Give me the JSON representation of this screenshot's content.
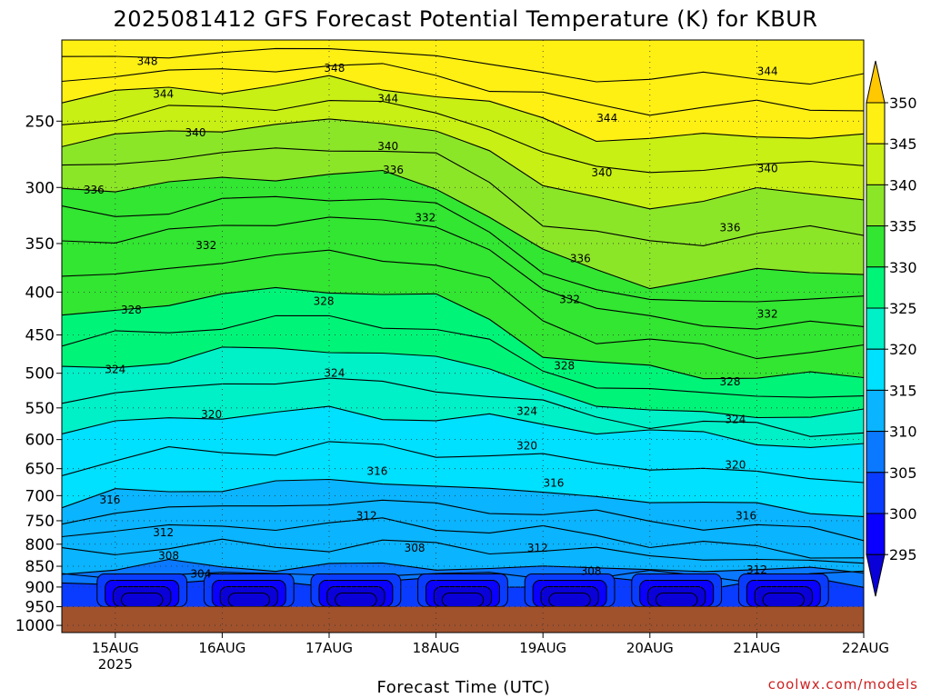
{
  "chart_data": {
    "type": "heatmap",
    "title": "2025081412 GFS Forecast Potential Temperature (K) for KBUR",
    "xlabel": "Forecast Time (UTC)",
    "ylabel": "",
    "x_ticks": [
      {
        "value": 0.5,
        "label": "15AUG",
        "sub": "2025"
      },
      {
        "value": 1.5,
        "label": "16AUG"
      },
      {
        "value": 2.5,
        "label": "17AUG"
      },
      {
        "value": 3.5,
        "label": "18AUG"
      },
      {
        "value": 4.5,
        "label": "19AUG"
      },
      {
        "value": 5.5,
        "label": "20AUG"
      },
      {
        "value": 6.5,
        "label": "21AUG"
      },
      {
        "value": 7.5,
        "label": "22AUG"
      }
    ],
    "xlim": [
      0,
      7.5
    ],
    "y_ticks": [
      250,
      300,
      350,
      400,
      450,
      500,
      550,
      600,
      650,
      700,
      750,
      800,
      850,
      900,
      950,
      1000
    ],
    "ylim_hPa": [
      200,
      1020
    ],
    "y_scale": "log-pressure",
    "surface_pressure_hPa": 950,
    "grid": true,
    "colorbar": {
      "levels": [
        295,
        300,
        305,
        310,
        315,
        320,
        325,
        330,
        335,
        340,
        345,
        350
      ],
      "colors": [
        "#0a00d8",
        "#0a00ff",
        "#0a3cff",
        "#0a78ff",
        "#0ab4ff",
        "#00e0ff",
        "#00f0c8",
        "#00f578",
        "#32e632",
        "#8ce628",
        "#c8f014",
        "#fff014",
        "#ffc800"
      ],
      "placement": "right"
    },
    "contour_interval": 4,
    "isentropes": [
      {
        "theta": 304,
        "p": [
          890,
          890,
          889,
          889,
          888,
          888,
          889,
          890,
          890,
          890,
          890,
          890,
          890,
          890,
          890,
          890
        ]
      },
      {
        "theta": 308,
        "p": [
          855,
          853,
          850,
          850,
          849,
          850,
          850,
          852,
          852,
          854,
          856,
          856,
          858,
          860,
          860,
          860
        ]
      },
      {
        "theta": 312,
        "p": [
          780,
          770,
          765,
          762,
          760,
          758,
          755,
          760,
          768,
          775,
          782,
          792,
          800,
          815,
          820,
          825
        ]
      },
      {
        "theta": 316,
        "p": [
          720,
          700,
          690,
          682,
          678,
          675,
          672,
          680,
          690,
          695,
          700,
          710,
          715,
          720,
          730,
          735
        ]
      },
      {
        "theta": 320,
        "p": [
          590,
          575,
          565,
          560,
          560,
          555,
          560,
          565,
          570,
          575,
          580,
          590,
          595,
          600,
          610,
          615
        ]
      },
      {
        "theta": 324,
        "p": [
          500,
          490,
          480,
          470,
          470,
          468,
          472,
          480,
          495,
          520,
          545,
          555,
          560,
          560,
          560,
          560
        ]
      },
      {
        "theta": 328,
        "p": [
          430,
          420,
          410,
          405,
          400,
          395,
          400,
          410,
          430,
          470,
          490,
          495,
          500,
          505,
          505,
          505
        ]
      },
      {
        "theta": 332,
        "p": [
          345,
          345,
          340,
          335,
          330,
          325,
          330,
          335,
          355,
          395,
          420,
          430,
          435,
          440,
          440,
          440
        ]
      },
      {
        "theta": 336,
        "p": [
          300,
          300,
          298,
          295,
          290,
          288,
          292,
          300,
          320,
          360,
          380,
          390,
          385,
          380,
          378,
          378
        ]
      },
      {
        "theta": 340,
        "p": [
          265,
          262,
          258,
          255,
          252,
          250,
          252,
          256,
          270,
          300,
          310,
          315,
          310,
          305,
          305,
          305
        ]
      },
      {
        "theta": 344,
        "p": [
          235,
          232,
          230,
          228,
          226,
          225,
          228,
          230,
          240,
          250,
          260,
          262,
          262,
          260,
          260,
          260
        ]
      },
      {
        "theta": 348,
        "p": [
          212,
          210,
          208,
          207,
          206,
          205,
          206,
          208,
          215,
          220,
          222,
          222,
          222,
          222,
          222,
          222
        ]
      }
    ],
    "contour_labels": [
      {
        "text": "348",
        "x": 0.8,
        "p": 212
      },
      {
        "text": "348",
        "x": 2.55,
        "p": 216
      },
      {
        "text": "344",
        "x": 0.95,
        "p": 232
      },
      {
        "text": "344",
        "x": 3.05,
        "p": 235
      },
      {
        "text": "344",
        "x": 5.1,
        "p": 248
      },
      {
        "text": "344",
        "x": 6.6,
        "p": 218
      },
      {
        "text": "340",
        "x": 1.25,
        "p": 258
      },
      {
        "text": "340",
        "x": 3.05,
        "p": 268
      },
      {
        "text": "340",
        "x": 5.05,
        "p": 288
      },
      {
        "text": "340",
        "x": 6.6,
        "p": 285
      },
      {
        "text": "336",
        "x": 0.3,
        "p": 302
      },
      {
        "text": "336",
        "x": 3.1,
        "p": 286
      },
      {
        "text": "336",
        "x": 6.25,
        "p": 335
      },
      {
        "text": "336",
        "x": 4.85,
        "p": 365
      },
      {
        "text": "332",
        "x": 1.35,
        "p": 352
      },
      {
        "text": "332",
        "x": 3.4,
        "p": 326
      },
      {
        "text": "332",
        "x": 4.75,
        "p": 408
      },
      {
        "text": "332",
        "x": 6.6,
        "p": 425
      },
      {
        "text": "328",
        "x": 0.65,
        "p": 420
      },
      {
        "text": "328",
        "x": 2.45,
        "p": 410
      },
      {
        "text": "328",
        "x": 4.7,
        "p": 490
      },
      {
        "text": "328",
        "x": 6.25,
        "p": 512
      },
      {
        "text": "324",
        "x": 0.5,
        "p": 495
      },
      {
        "text": "324",
        "x": 2.55,
        "p": 500
      },
      {
        "text": "324",
        "x": 4.35,
        "p": 555
      },
      {
        "text": "324",
        "x": 6.3,
        "p": 568
      },
      {
        "text": "320",
        "x": 1.4,
        "p": 560
      },
      {
        "text": "320",
        "x": 4.35,
        "p": 610
      },
      {
        "text": "320",
        "x": 6.3,
        "p": 643
      },
      {
        "text": "316",
        "x": 0.45,
        "p": 708
      },
      {
        "text": "316",
        "x": 2.95,
        "p": 655
      },
      {
        "text": "316",
        "x": 4.6,
        "p": 676
      },
      {
        "text": "316",
        "x": 6.4,
        "p": 740
      },
      {
        "text": "312",
        "x": 0.95,
        "p": 775
      },
      {
        "text": "312",
        "x": 2.85,
        "p": 740
      },
      {
        "text": "312",
        "x": 4.45,
        "p": 808
      },
      {
        "text": "312",
        "x": 6.5,
        "p": 858
      },
      {
        "text": "308",
        "x": 1.0,
        "p": 826
      },
      {
        "text": "308",
        "x": 3.3,
        "p": 808
      },
      {
        "text": "308",
        "x": 4.95,
        "p": 862
      },
      {
        "text": "304",
        "x": 1.3,
        "p": 868
      }
    ]
  },
  "credit": "coolwx.com/models"
}
